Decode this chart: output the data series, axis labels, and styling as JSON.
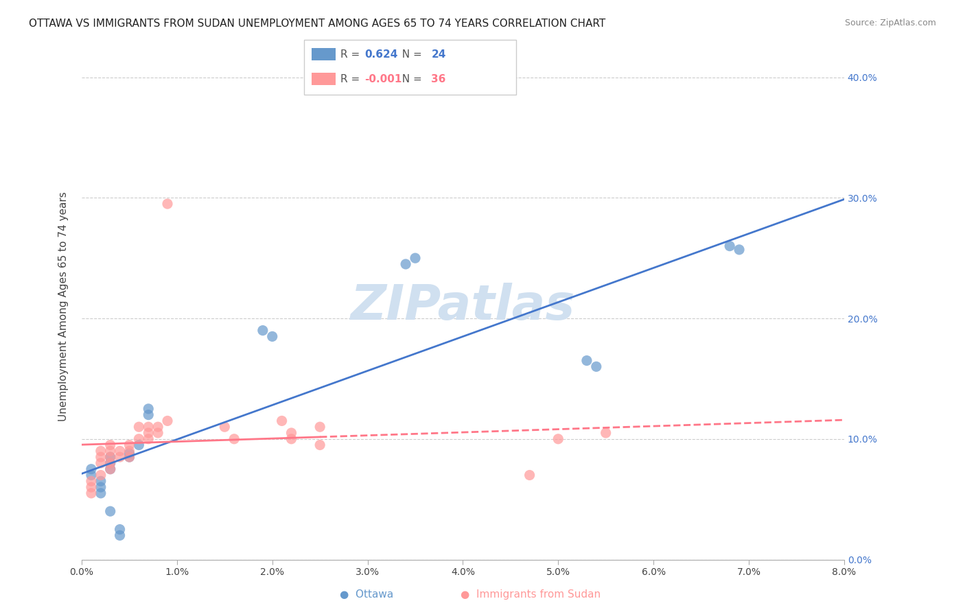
{
  "title": "OTTAWA VS IMMIGRANTS FROM SUDAN UNEMPLOYMENT AMONG AGES 65 TO 74 YEARS CORRELATION CHART",
  "source": "Source: ZipAtlas.com",
  "xlabel_bottom": "",
  "ylabel": "Unemployment Among Ages 65 to 74 years",
  "r_ottawa": 0.624,
  "n_ottawa": 24,
  "r_sudan": -0.001,
  "n_sudan": 36,
  "xlim": [
    0.0,
    0.08
  ],
  "ylim": [
    0.0,
    0.42
  ],
  "xticks": [
    0.0,
    0.01,
    0.02,
    0.03,
    0.04,
    0.05,
    0.06,
    0.07,
    0.08
  ],
  "yticks_right": [
    0.0,
    0.1,
    0.2,
    0.3,
    0.4
  ],
  "x_bottom_labels": [
    "0.0%",
    "1.0%",
    "2.0%",
    "3.0%",
    "4.0%",
    "5.0%",
    "6.0%",
    "7.0%",
    "8.0%"
  ],
  "y_right_labels": [
    "0.0%",
    "10.0%",
    "20.0%",
    "30.0%",
    "40.0%"
  ],
  "ottawa_x": [
    0.001,
    0.001,
    0.002,
    0.002,
    0.002,
    0.003,
    0.003,
    0.003,
    0.003,
    0.004,
    0.004,
    0.005,
    0.005,
    0.006,
    0.007,
    0.007,
    0.019,
    0.02,
    0.034,
    0.035,
    0.053,
    0.054,
    0.068,
    0.069
  ],
  "ottawa_y": [
    0.075,
    0.07,
    0.065,
    0.06,
    0.055,
    0.085,
    0.08,
    0.075,
    0.04,
    0.02,
    0.025,
    0.088,
    0.085,
    0.095,
    0.125,
    0.12,
    0.19,
    0.185,
    0.245,
    0.25,
    0.165,
    0.16,
    0.26,
    0.257
  ],
  "sudan_x": [
    0.001,
    0.001,
    0.001,
    0.002,
    0.002,
    0.002,
    0.002,
    0.003,
    0.003,
    0.003,
    0.003,
    0.003,
    0.004,
    0.004,
    0.005,
    0.005,
    0.005,
    0.006,
    0.006,
    0.007,
    0.007,
    0.007,
    0.008,
    0.008,
    0.009,
    0.009,
    0.015,
    0.016,
    0.021,
    0.022,
    0.022,
    0.025,
    0.025,
    0.047,
    0.05,
    0.055
  ],
  "sudan_y": [
    0.065,
    0.06,
    0.055,
    0.09,
    0.085,
    0.08,
    0.07,
    0.095,
    0.09,
    0.085,
    0.08,
    0.075,
    0.09,
    0.085,
    0.095,
    0.09,
    0.085,
    0.11,
    0.1,
    0.11,
    0.105,
    0.1,
    0.11,
    0.105,
    0.115,
    0.295,
    0.11,
    0.1,
    0.115,
    0.105,
    0.1,
    0.095,
    0.11,
    0.07,
    0.1,
    0.105
  ],
  "ottawa_color": "#6699CC",
  "sudan_color": "#FF9999",
  "ottawa_line_color": "#4477CC",
  "sudan_line_color": "#FF7788",
  "background_color": "#ffffff",
  "grid_color": "#cccccc",
  "watermark_text": "ZIPatlas",
  "watermark_color": "#d0e0f0"
}
